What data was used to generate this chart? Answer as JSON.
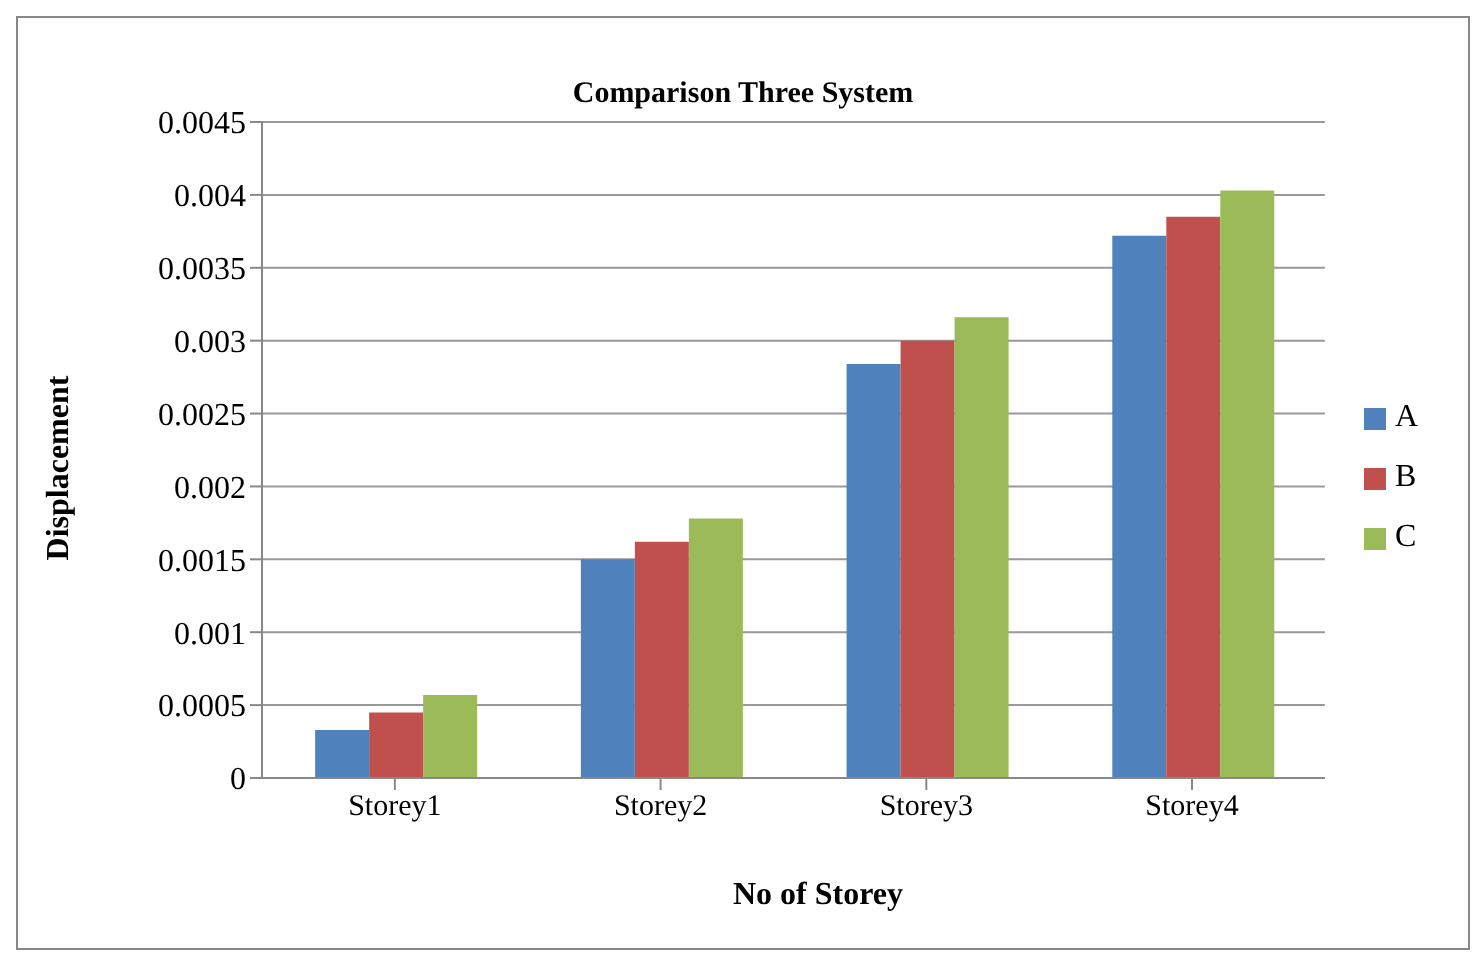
{
  "chart_data": {
    "type": "bar",
    "title": "Comparison Three System",
    "xlabel": "No of Storey",
    "ylabel": "Displacement",
    "categories": [
      "Storey1",
      "Storey2",
      "Storey3",
      "Storey4"
    ],
    "series": [
      {
        "name": "A",
        "color": "#4f81bd",
        "values": [
          0.00033,
          0.0015,
          0.00284,
          0.00372
        ]
      },
      {
        "name": "B",
        "color": "#c0504d",
        "values": [
          0.00045,
          0.00162,
          0.003,
          0.00385
        ]
      },
      {
        "name": "C",
        "color": "#9bbb59",
        "values": [
          0.00057,
          0.00178,
          0.00316,
          0.00403
        ]
      }
    ],
    "ylim": [
      0,
      0.0045
    ],
    "yticks": [
      0,
      0.0005,
      0.001,
      0.0015,
      0.002,
      0.0025,
      0.003,
      0.0035,
      0.004,
      0.0045
    ],
    "grid": "y",
    "legend": "right"
  }
}
